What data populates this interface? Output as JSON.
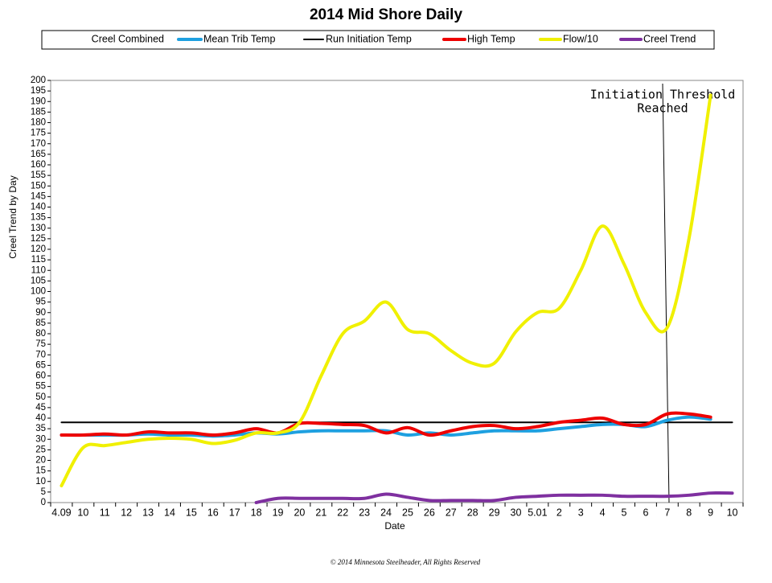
{
  "chart_data": {
    "type": "line",
    "title": "2014 Mid Shore Daily",
    "x_label": "Date",
    "y_label": "Creel Trend by Day",
    "annotation": [
      "Initiation Threshold",
      "Reached"
    ],
    "footer": "© 2014 Minnesota Steelheader, All Rights Reserved",
    "categories": [
      "4.09",
      "10",
      "11",
      "12",
      "13",
      "14",
      "15",
      "16",
      "17",
      "18",
      "19",
      "20",
      "21",
      "22",
      "23",
      "24",
      "25",
      "26",
      "27",
      "28",
      "29",
      "30",
      "5.01",
      "2",
      "3",
      "4",
      "5",
      "6",
      "7",
      "8",
      "9",
      "10"
    ],
    "ylim": [
      0,
      200
    ],
    "yticks": [
      0,
      5,
      10,
      15,
      20,
      25,
      30,
      35,
      40,
      45,
      50,
      55,
      60,
      65,
      70,
      75,
      80,
      85,
      90,
      95,
      100,
      105,
      110,
      115,
      120,
      125,
      130,
      135,
      140,
      145,
      150,
      155,
      160,
      165,
      170,
      175,
      180,
      185,
      190,
      195,
      200
    ],
    "grid": false,
    "smooth": true,
    "series": [
      {
        "name": "Creel Combined",
        "color": "#ffffff",
        "values": [
          null,
          null,
          null,
          null,
          null,
          null,
          null,
          null,
          null,
          null,
          null,
          null,
          null,
          null,
          null,
          null,
          null,
          null,
          null,
          null,
          null,
          null,
          null,
          null,
          null,
          null,
          null,
          null,
          null,
          null,
          null,
          null
        ]
      },
      {
        "name": "Mean Trib Temp",
        "color": "#1ea0e0",
        "values": [
          32,
          32,
          32,
          32,
          32.5,
          32,
          32,
          31.5,
          32,
          33,
          32.5,
          33.5,
          34,
          34,
          34,
          34,
          32,
          33,
          32,
          33,
          34,
          34,
          34,
          35,
          36,
          37,
          37,
          36,
          39,
          40.5,
          39.5,
          null
        ]
      },
      {
        "name": "Run Initiation Temp",
        "color": "#000000",
        "values": [
          38,
          38,
          38,
          38,
          38,
          38,
          38,
          38,
          38,
          38,
          38,
          38,
          38,
          38,
          38,
          38,
          38,
          38,
          38,
          38,
          38,
          38,
          38,
          38,
          38,
          38,
          38,
          38,
          38,
          38,
          38,
          38
        ]
      },
      {
        "name": "High Temp",
        "color": "#ee0000",
        "values": [
          32,
          32,
          32.5,
          32,
          33.5,
          33,
          33,
          32,
          33,
          35,
          33,
          37.5,
          37.5,
          37,
          36.5,
          33,
          35.5,
          32,
          34,
          36,
          36.5,
          35,
          36,
          38,
          39,
          40,
          37,
          37,
          42,
          42,
          40.5,
          null
        ]
      },
      {
        "name": "Flow/10",
        "color": "#f0f000",
        "values": [
          8,
          26,
          27,
          28.5,
          30,
          30.5,
          30,
          28,
          29.5,
          33,
          33,
          38,
          60,
          80,
          86,
          95,
          82,
          80,
          72,
          66,
          66,
          81,
          90,
          92,
          110,
          131,
          113,
          90,
          83,
          125,
          193,
          null
        ]
      },
      {
        "name": "Creel Trend",
        "color": "#7f30a0",
        "values": [
          null,
          null,
          null,
          null,
          null,
          null,
          null,
          null,
          null,
          0,
          2,
          2,
          2,
          2,
          2,
          4,
          2.5,
          1,
          1,
          1,
          1,
          2.5,
          3,
          3.5,
          3.5,
          3.5,
          3,
          3,
          3,
          3.5,
          4.5,
          4.5
        ]
      }
    ]
  }
}
